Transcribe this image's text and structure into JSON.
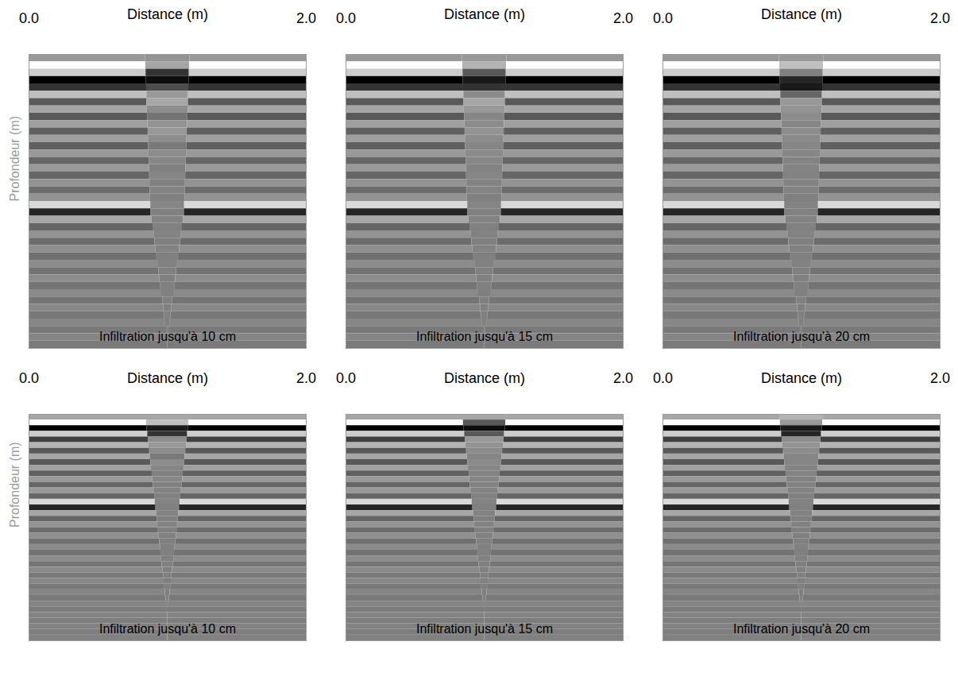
{
  "chart_data": [
    {
      "type": "heatmap",
      "xlabel": "Distance (m)",
      "ylabel": "Profondeur (m)",
      "annotation": "Infiltration jusqu'à 10 cm",
      "xlim": [
        0,
        2
      ],
      "xticks": [
        0,
        2
      ],
      "ylim": [
        0,
        1
      ],
      "tick_labels": "x",
      "zlim": [
        -1,
        1
      ],
      "anomaly_center": 1.0,
      "y": [
        0.0125,
        0.0375,
        0.0625,
        0.0875,
        0.1125,
        0.1375,
        0.1625,
        0.1875,
        0.2125,
        0.2375,
        0.2625,
        0.2875,
        0.3125,
        0.3375,
        0.3625,
        0.3875,
        0.4125,
        0.4375,
        0.4625,
        0.4875,
        0.5125,
        0.5375,
        0.5625,
        0.5875,
        0.6125,
        0.6375,
        0.6625,
        0.6875,
        0.7125,
        0.7375,
        0.7625,
        0.7875,
        0.8125,
        0.8375,
        0.8625,
        0.8875,
        0.9125,
        0.9375,
        0.9625,
        0.9875
      ],
      "background": [
        0.2,
        1.0,
        0.6,
        -1.0,
        -0.6,
        0.5,
        -0.3,
        0.3,
        -0.3,
        0.25,
        -0.25,
        0.25,
        -0.25,
        0.2,
        -0.2,
        0.2,
        -0.2,
        0.15,
        -0.15,
        0.15,
        0.7,
        -0.7,
        0.3,
        -0.2,
        0.15,
        -0.15,
        0.12,
        -0.12,
        0.1,
        -0.1,
        0.1,
        -0.08,
        0.08,
        -0.08,
        0.06,
        -0.06,
        0.05,
        -0.05,
        0.04,
        -0.04
      ],
      "anomaly": [
        0.15,
        0.3,
        -0.6,
        -0.9,
        -0.4,
        0.2,
        0.3,
        0.1,
        -0.1,
        0.15,
        0.2,
        0.1,
        -0.05,
        0.1,
        0.05,
        0,
        0.05,
        0,
        0.03,
        0,
        0.05,
        0,
        0.03,
        0,
        0.02,
        0,
        0.02,
        0,
        0.01,
        0,
        0,
        0,
        0,
        0,
        0,
        0,
        0,
        0,
        0,
        0
      ],
      "anomaly_halfwidth": [
        0.16,
        0.158,
        0.156,
        0.154,
        0.152,
        0.15,
        0.149,
        0.147,
        0.145,
        0.143,
        0.141,
        0.139,
        0.137,
        0.135,
        0.133,
        0.131,
        0.13,
        0.128,
        0.126,
        0.124,
        0.122,
        0.12,
        0.113,
        0.106,
        0.099,
        0.092,
        0.085,
        0.078,
        0.071,
        0.064,
        0.057,
        0.05,
        0.043,
        0.036,
        0.029,
        0.022,
        0.015,
        0.008,
        0.003,
        0
      ]
    },
    {
      "type": "heatmap",
      "xlabel": "Distance (m)",
      "annotation": "Infiltration jusqu'à 15 cm",
      "xlim": [
        0,
        2
      ],
      "xticks": [
        0,
        2
      ],
      "ylim": [
        0,
        1
      ],
      "tick_labels": "x",
      "zlim": [
        -1,
        1
      ],
      "anomaly_center": 1.0,
      "y": [
        0.0125,
        0.0375,
        0.0625,
        0.0875,
        0.1125,
        0.1375,
        0.1625,
        0.1875,
        0.2125,
        0.2375,
        0.2625,
        0.2875,
        0.3125,
        0.3375,
        0.3625,
        0.3875,
        0.4125,
        0.4375,
        0.4625,
        0.4875,
        0.5125,
        0.5375,
        0.5625,
        0.5875,
        0.6125,
        0.6375,
        0.6625,
        0.6875,
        0.7125,
        0.7375,
        0.7625,
        0.7875,
        0.8125,
        0.8375,
        0.8625,
        0.8875,
        0.9125,
        0.9375,
        0.9625,
        0.9875
      ],
      "background": [
        0.2,
        1.0,
        0.6,
        -1.0,
        -0.6,
        0.5,
        -0.3,
        0.3,
        -0.3,
        0.25,
        -0.25,
        0.25,
        -0.25,
        0.2,
        -0.2,
        0.2,
        -0.2,
        0.15,
        -0.15,
        0.15,
        0.7,
        -0.7,
        0.3,
        -0.2,
        0.15,
        -0.15,
        0.12,
        -0.12,
        0.1,
        -0.1,
        0.1,
        -0.08,
        0.08,
        -0.08,
        0.06,
        -0.06,
        0.05,
        -0.05,
        0.04,
        -0.04
      ],
      "anomaly": [
        0.2,
        0.4,
        -0.3,
        -0.8,
        -0.6,
        0.1,
        0.3,
        0.2,
        0.05,
        0.1,
        0.15,
        0.1,
        0.05,
        0.08,
        0.05,
        0.03,
        0.05,
        0.02,
        0.03,
        0,
        0.04,
        0,
        0.03,
        0,
        0.02,
        0,
        0.02,
        0,
        0.01,
        0,
        0,
        0,
        0,
        0,
        0,
        0,
        0,
        0,
        0,
        0
      ],
      "anomaly_halfwidth": [
        0.16,
        0.158,
        0.156,
        0.154,
        0.152,
        0.15,
        0.149,
        0.147,
        0.145,
        0.143,
        0.141,
        0.139,
        0.137,
        0.135,
        0.133,
        0.131,
        0.13,
        0.128,
        0.126,
        0.124,
        0.122,
        0.12,
        0.113,
        0.106,
        0.099,
        0.092,
        0.085,
        0.078,
        0.071,
        0.064,
        0.057,
        0.05,
        0.043,
        0.036,
        0.029,
        0.022,
        0.015,
        0.008,
        0.003,
        0
      ]
    },
    {
      "type": "heatmap",
      "xlabel": "Distance (m)",
      "annotation": "Infiltration jusqu'à 20 cm",
      "xlim": [
        0,
        2
      ],
      "xticks": [
        0,
        2
      ],
      "ylim": [
        0,
        1
      ],
      "tick_labels": "x",
      "zlim": [
        -1,
        1
      ],
      "anomaly_center": 1.0,
      "y": [
        0.0125,
        0.0375,
        0.0625,
        0.0875,
        0.1125,
        0.1375,
        0.1625,
        0.1875,
        0.2125,
        0.2375,
        0.2625,
        0.2875,
        0.3125,
        0.3375,
        0.3625,
        0.3875,
        0.4125,
        0.4375,
        0.4625,
        0.4875,
        0.5125,
        0.5375,
        0.5625,
        0.5875,
        0.6125,
        0.6375,
        0.6625,
        0.6875,
        0.7125,
        0.7375,
        0.7625,
        0.7875,
        0.8125,
        0.8375,
        0.8625,
        0.8875,
        0.9125,
        0.9375,
        0.9625,
        0.9875
      ],
      "background": [
        0.2,
        1.0,
        0.6,
        -1.0,
        -0.6,
        0.5,
        -0.3,
        0.3,
        -0.3,
        0.25,
        -0.25,
        0.25,
        -0.25,
        0.2,
        -0.2,
        0.2,
        -0.2,
        0.15,
        -0.15,
        0.15,
        0.7,
        -0.7,
        0.3,
        -0.2,
        0.15,
        -0.15,
        0.12,
        -0.12,
        0.1,
        -0.1,
        0.1,
        -0.08,
        0.08,
        -0.08,
        0.06,
        -0.06,
        0.05,
        -0.05,
        0.04,
        -0.04
      ],
      "anomaly": [
        0.2,
        0.5,
        0.0,
        -0.7,
        -0.8,
        -0.2,
        0.2,
        0.15,
        0.1,
        0.05,
        0.1,
        0.08,
        0.05,
        0.05,
        0.03,
        0.03,
        0.02,
        0.02,
        0.02,
        0,
        0.03,
        0,
        0.02,
        0,
        0.02,
        0,
        0.01,
        0,
        0.01,
        0,
        0,
        0,
        0,
        0,
        0,
        0,
        0,
        0,
        0,
        0
      ],
      "anomaly_halfwidth": [
        0.16,
        0.158,
        0.156,
        0.154,
        0.152,
        0.15,
        0.149,
        0.147,
        0.145,
        0.143,
        0.141,
        0.139,
        0.137,
        0.135,
        0.133,
        0.131,
        0.13,
        0.128,
        0.126,
        0.124,
        0.122,
        0.12,
        0.113,
        0.106,
        0.099,
        0.092,
        0.085,
        0.078,
        0.071,
        0.064,
        0.057,
        0.05,
        0.043,
        0.036,
        0.029,
        0.022,
        0.015,
        0.008,
        0.003,
        0
      ]
    },
    {
      "type": "heatmap",
      "xlabel": "Distance (m)",
      "ylabel": "Profondeur (m)",
      "annotation": "Infiltration jusqu'à 10 cm",
      "xlim": [
        0,
        2
      ],
      "xticks": [
        0,
        2
      ],
      "ylim": [
        0,
        1
      ],
      "tick_labels": "x",
      "zlim": [
        -1,
        1
      ],
      "anomaly_center": 1.0,
      "y": [
        0.0125,
        0.0375,
        0.0625,
        0.0875,
        0.1125,
        0.1375,
        0.1625,
        0.1875,
        0.2125,
        0.2375,
        0.2625,
        0.2875,
        0.3125,
        0.3375,
        0.3625,
        0.3875,
        0.4125,
        0.4375,
        0.4625,
        0.4875,
        0.5125,
        0.5375,
        0.5625,
        0.5875,
        0.6125,
        0.6375,
        0.6625,
        0.6875,
        0.7125,
        0.7375,
        0.7625,
        0.7875,
        0.8125,
        0.8375,
        0.8625,
        0.8875,
        0.9125,
        0.9375,
        0.9625,
        0.9875
      ],
      "background": [
        0.3,
        1.0,
        -1.0,
        0.6,
        -0.5,
        0.4,
        -0.3,
        0.3,
        -0.3,
        0.25,
        -0.25,
        0.2,
        -0.2,
        0.2,
        -0.2,
        0.7,
        -0.7,
        0.3,
        -0.2,
        0.15,
        -0.15,
        0.12,
        -0.12,
        0.1,
        -0.1,
        0.1,
        -0.08,
        0.08,
        -0.06,
        0.06,
        -0.05,
        0.05,
        -0.04,
        0.04,
        -0.03,
        0.03,
        -0.02,
        0.02,
        -0.01,
        0.01
      ],
      "anomaly": [
        0.3,
        0.5,
        -0.8,
        -0.6,
        0.1,
        0.2,
        0.1,
        -0.05,
        0.1,
        0.05,
        0,
        0.05,
        0,
        0.03,
        0,
        0.03,
        0,
        0.02,
        0,
        0.02,
        0,
        0.01,
        0,
        0,
        0,
        0,
        0,
        0,
        0,
        0,
        0,
        0,
        0,
        0,
        0,
        0,
        0,
        0,
        0,
        0
      ],
      "anomaly_halfwidth": [
        0.158,
        0.153,
        0.149,
        0.144,
        0.14,
        0.135,
        0.13,
        0.126,
        0.121,
        0.117,
        0.112,
        0.108,
        0.103,
        0.099,
        0.094,
        0.09,
        0.085,
        0.08,
        0.076,
        0.071,
        0.067,
        0.062,
        0.058,
        0.053,
        0.049,
        0.044,
        0.04,
        0.035,
        0.03,
        0.026,
        0.021,
        0.017,
        0.012,
        0.008,
        0.003,
        0,
        0,
        0,
        0,
        0
      ]
    },
    {
      "type": "heatmap",
      "xlabel": "Distance (m)",
      "annotation": "Infiltration jusqu'à 15 cm",
      "xlim": [
        0,
        2
      ],
      "xticks": [
        0,
        2
      ],
      "ylim": [
        0,
        1
      ],
      "tick_labels": "x",
      "zlim": [
        -1,
        1
      ],
      "anomaly_center": 1.0,
      "y": [
        0.0125,
        0.0375,
        0.0625,
        0.0875,
        0.1125,
        0.1375,
        0.1625,
        0.1875,
        0.2125,
        0.2375,
        0.2625,
        0.2875,
        0.3125,
        0.3375,
        0.3625,
        0.3875,
        0.4125,
        0.4375,
        0.4625,
        0.4875,
        0.5125,
        0.5375,
        0.5625,
        0.5875,
        0.6125,
        0.6375,
        0.6625,
        0.6875,
        0.7125,
        0.7375,
        0.7625,
        0.7875,
        0.8125,
        0.8375,
        0.8625,
        0.8875,
        0.9125,
        0.9375,
        0.9625,
        0.9875
      ],
      "background": [
        0.3,
        1.0,
        -1.0,
        0.6,
        -0.5,
        0.4,
        -0.3,
        0.3,
        -0.3,
        0.25,
        -0.25,
        0.2,
        -0.2,
        0.2,
        -0.2,
        0.7,
        -0.7,
        0.3,
        -0.2,
        0.15,
        -0.15,
        0.12,
        -0.12,
        0.1,
        -0.1,
        0.1,
        -0.08,
        0.08,
        -0.06,
        0.06,
        -0.05,
        0.05,
        -0.04,
        0.04,
        -0.03,
        0.03,
        -0.02,
        0.02,
        -0.01,
        0.01
      ],
      "anomaly": [
        0.3,
        -0.3,
        -0.9,
        -0.3,
        0.2,
        0.15,
        0.1,
        0.05,
        0.08,
        0.05,
        0.03,
        0.05,
        0.02,
        0.03,
        0,
        0.03,
        0,
        0.02,
        0,
        0.02,
        0,
        0.01,
        0,
        0,
        0,
        0,
        0,
        0,
        0,
        0,
        0,
        0,
        0,
        0,
        0,
        0,
        0,
        0,
        0,
        0
      ],
      "anomaly_halfwidth": [
        0.158,
        0.153,
        0.149,
        0.144,
        0.14,
        0.135,
        0.13,
        0.126,
        0.121,
        0.117,
        0.112,
        0.108,
        0.103,
        0.099,
        0.094,
        0.09,
        0.085,
        0.08,
        0.076,
        0.071,
        0.067,
        0.062,
        0.058,
        0.053,
        0.049,
        0.044,
        0.04,
        0.035,
        0.03,
        0.026,
        0.021,
        0.017,
        0.012,
        0.008,
        0.003,
        0,
        0,
        0,
        0,
        0
      ]
    },
    {
      "type": "heatmap",
      "xlabel": "Distance (m)",
      "annotation": "Infiltration jusqu'à 20 cm",
      "xlim": [
        0,
        2
      ],
      "xticks": [
        0,
        2
      ],
      "ylim": [
        0,
        1
      ],
      "tick_labels": "x",
      "zlim": [
        -1,
        1
      ],
      "anomaly_center": 1.0,
      "y": [
        0.0125,
        0.0375,
        0.0625,
        0.0875,
        0.1125,
        0.1375,
        0.1625,
        0.1875,
        0.2125,
        0.2375,
        0.2625,
        0.2875,
        0.3125,
        0.3375,
        0.3625,
        0.3875,
        0.4125,
        0.4375,
        0.4625,
        0.4875,
        0.5125,
        0.5375,
        0.5625,
        0.5875,
        0.6125,
        0.6375,
        0.6625,
        0.6875,
        0.7125,
        0.7375,
        0.7625,
        0.7875,
        0.8125,
        0.8375,
        0.8625,
        0.8875,
        0.9125,
        0.9375,
        0.9625,
        0.9875
      ],
      "background": [
        0.3,
        1.0,
        -1.0,
        0.6,
        -0.5,
        0.4,
        -0.3,
        0.3,
        -0.3,
        0.25,
        -0.25,
        0.2,
        -0.2,
        0.2,
        -0.2,
        0.7,
        -0.7,
        0.3,
        -0.2,
        0.15,
        -0.15,
        0.12,
        -0.12,
        0.1,
        -0.1,
        0.1,
        -0.08,
        0.08,
        -0.06,
        0.06,
        -0.05,
        0.05,
        -0.04,
        0.04,
        -0.03,
        0.03,
        -0.02,
        0.02,
        -0.01,
        0.01
      ],
      "anomaly": [
        0.4,
        0.2,
        -0.8,
        -0.7,
        0.1,
        0.15,
        0.1,
        0.05,
        0.05,
        0.03,
        0.03,
        0.02,
        0.02,
        0.02,
        0,
        0.02,
        0,
        0.01,
        0,
        0.01,
        0,
        0,
        0,
        0,
        0,
        0,
        0,
        0,
        0,
        0,
        0,
        0,
        0,
        0,
        0,
        0,
        0,
        0,
        0,
        0
      ],
      "anomaly_halfwidth": [
        0.158,
        0.153,
        0.149,
        0.144,
        0.14,
        0.135,
        0.13,
        0.126,
        0.121,
        0.117,
        0.112,
        0.108,
        0.103,
        0.099,
        0.094,
        0.09,
        0.085,
        0.08,
        0.076,
        0.071,
        0.067,
        0.062,
        0.058,
        0.053,
        0.049,
        0.044,
        0.04,
        0.035,
        0.03,
        0.026,
        0.021,
        0.017,
        0.012,
        0.008,
        0.003,
        0,
        0,
        0,
        0,
        0
      ]
    }
  ]
}
